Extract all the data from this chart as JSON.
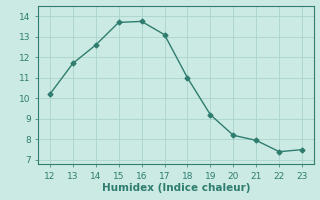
{
  "x": [
    12,
    13,
    14,
    15,
    16,
    17,
    18,
    19,
    20,
    21,
    22,
    23
  ],
  "y": [
    10.2,
    11.7,
    12.6,
    13.7,
    13.75,
    13.1,
    11.0,
    9.2,
    8.2,
    7.95,
    7.4,
    7.5
  ],
  "line_color": "#2e7d6e",
  "marker": "D",
  "marker_size": 2.5,
  "line_width": 1.0,
  "background_color": "#cceae4",
  "grid_color": "#aad4cc",
  "xlabel": "Humidex (Indice chaleur)",
  "xlabel_fontsize": 7.5,
  "xlim": [
    11.5,
    23.5
  ],
  "ylim": [
    6.8,
    14.5
  ],
  "xticks": [
    12,
    13,
    14,
    15,
    16,
    17,
    18,
    19,
    20,
    21,
    22,
    23
  ],
  "yticks": [
    7,
    8,
    9,
    10,
    11,
    12,
    13,
    14
  ],
  "tick_fontsize": 6.5,
  "spine_color": "#2e7d6e"
}
